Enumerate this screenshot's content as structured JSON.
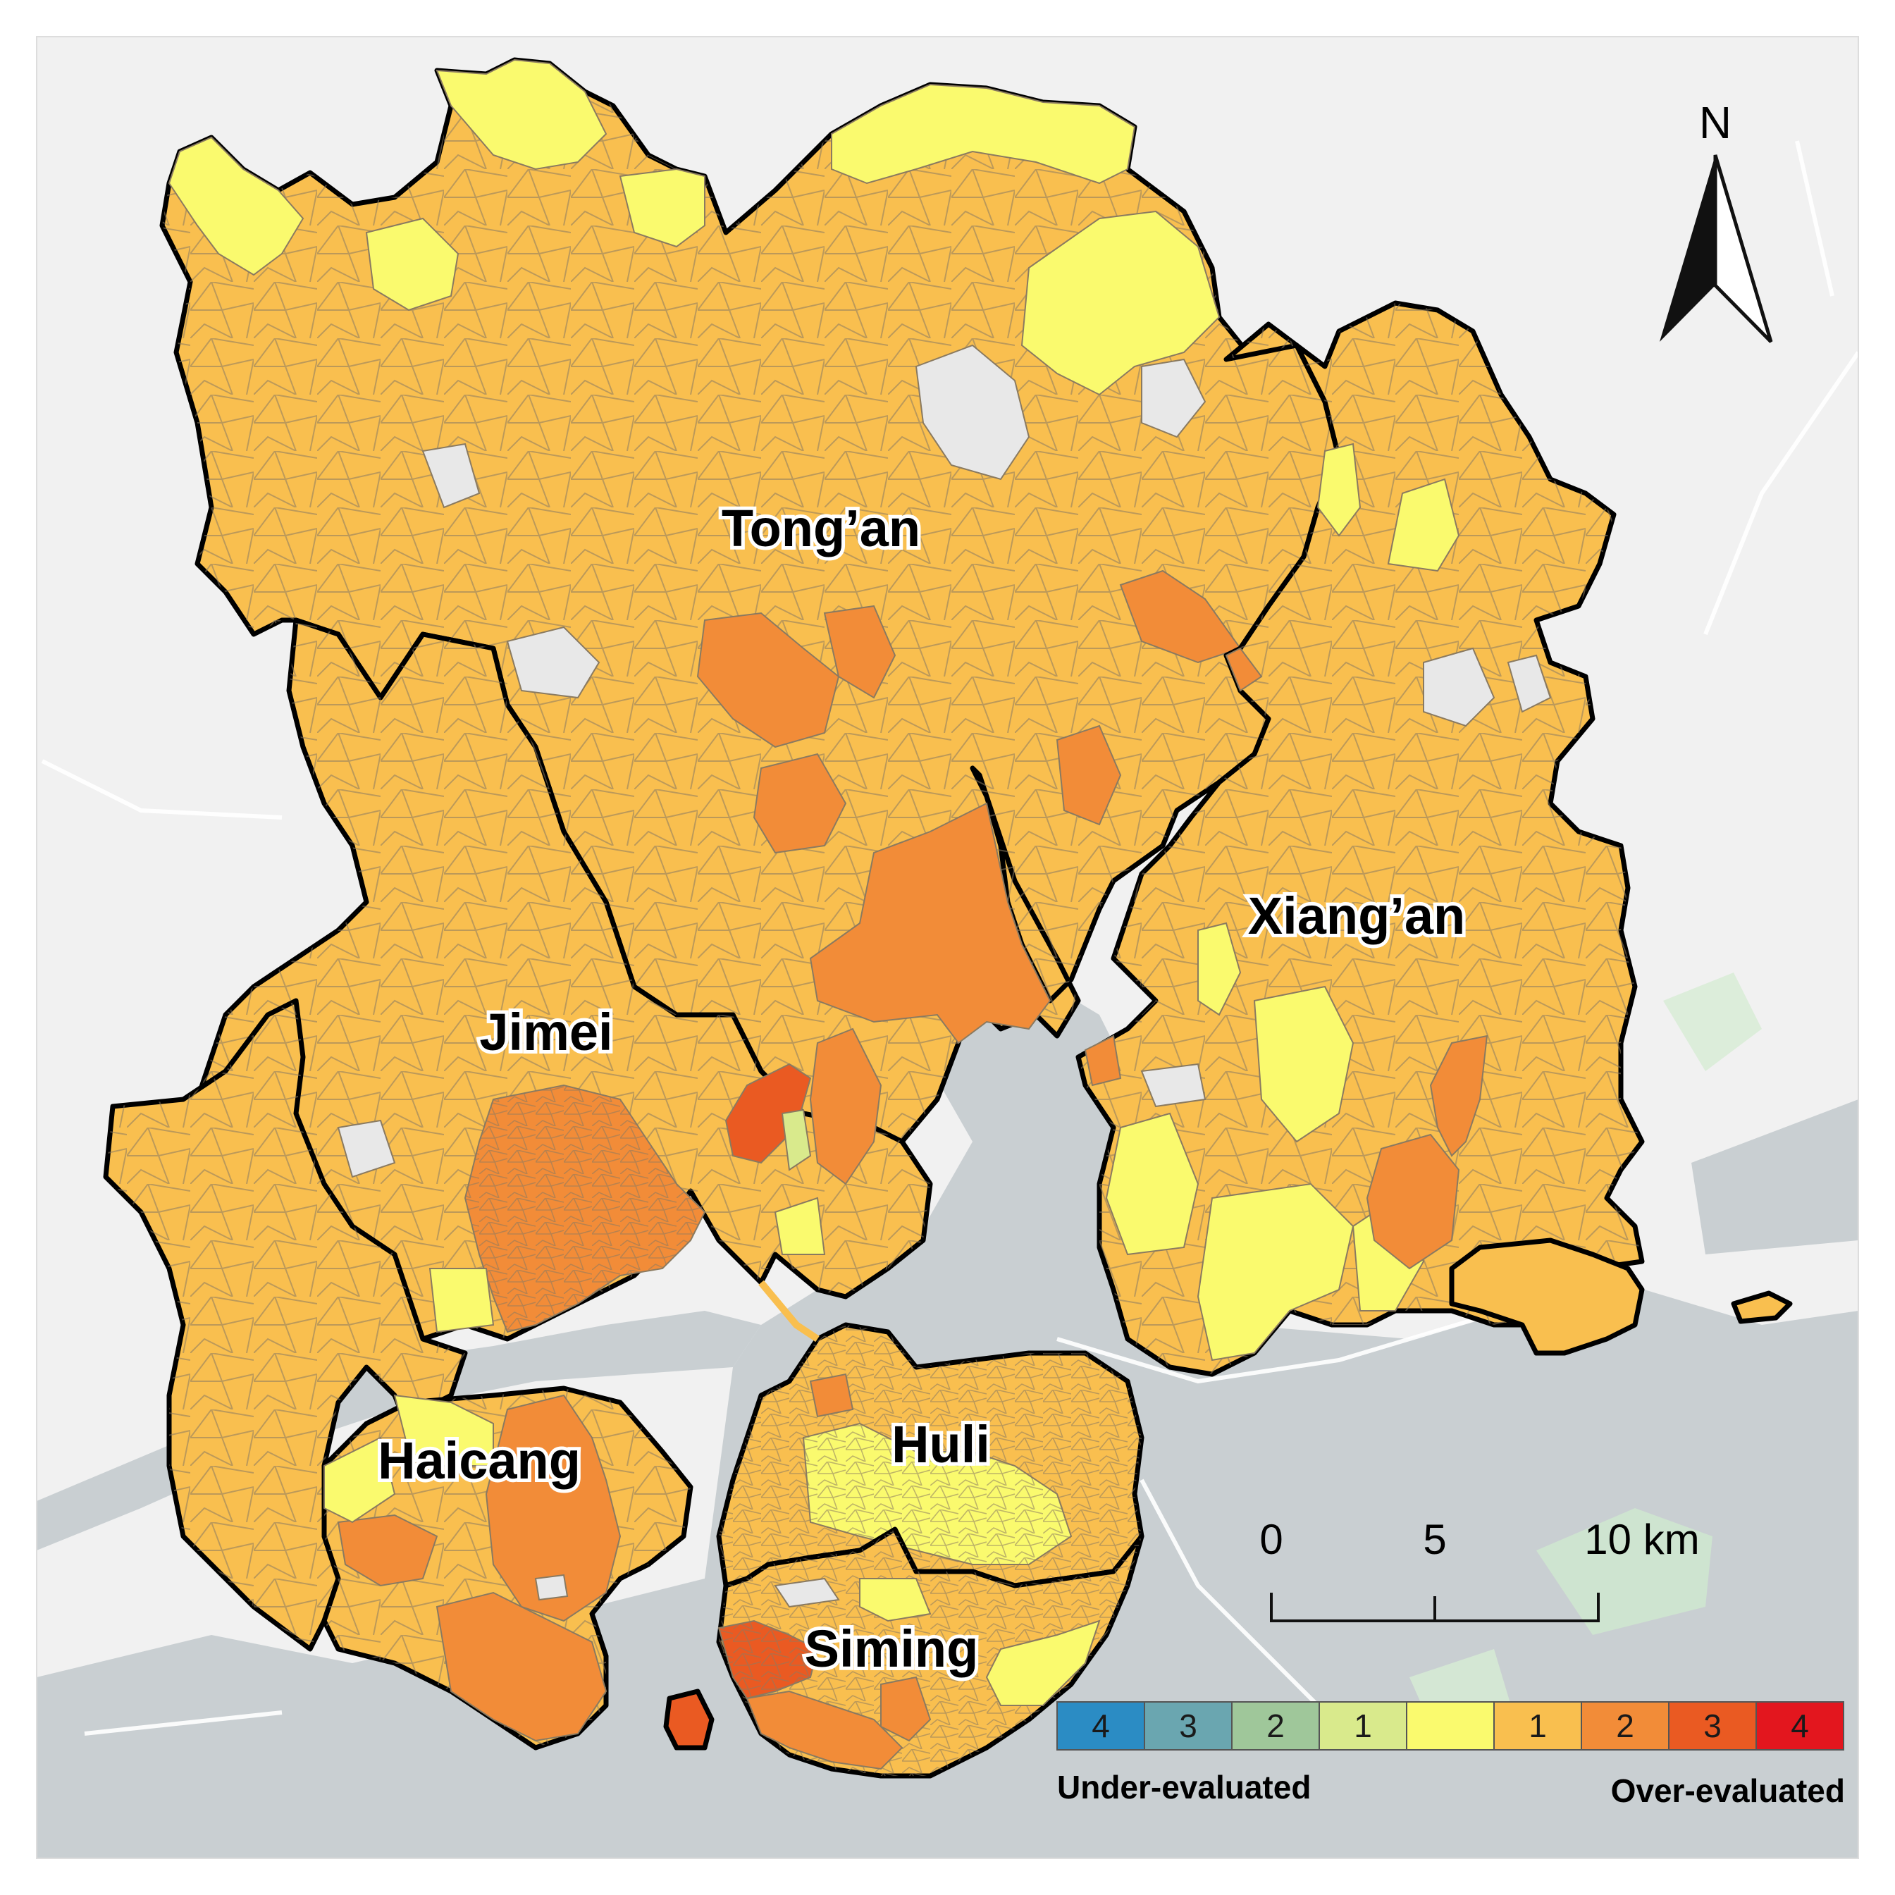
{
  "map": {
    "districts": [
      {
        "id": "tongan",
        "label": "Tong’an"
      },
      {
        "id": "xiangan",
        "label": "Xiang’an"
      },
      {
        "id": "jimei",
        "label": "Jimei"
      },
      {
        "id": "haicang",
        "label": "Haicang"
      },
      {
        "id": "huli",
        "label": "Huli"
      },
      {
        "id": "siming",
        "label": "Siming"
      }
    ],
    "north_arrow": {
      "label": "N"
    },
    "scale_bar": {
      "ticks": [
        "0",
        "5",
        "10 km"
      ]
    },
    "legend": {
      "classes": [
        {
          "label": "4",
          "color": "#2b8cc4"
        },
        {
          "label": "3",
          "color": "#6aa6b0"
        },
        {
          "label": "2",
          "color": "#9fc79a"
        },
        {
          "label": "1",
          "color": "#d9ea8c"
        },
        {
          "label": "",
          "color": "#fafa6e"
        },
        {
          "label": "1",
          "color": "#f9bf4f"
        },
        {
          "label": "2",
          "color": "#f28c38"
        },
        {
          "label": "3",
          "color": "#ea5a22"
        },
        {
          "label": "4",
          "color": "#e3161e"
        }
      ],
      "under_label": "Under-evaluated",
      "over_label": "Over-evaluated"
    },
    "colors": {
      "land_background": "#f1f1f1",
      "water": "#c9cfd2",
      "boundary": "#000000",
      "level_0": "#fafa6e",
      "over_1": "#f9bf4f",
      "over_2": "#f28c38",
      "over_3": "#ea5a22",
      "over_4": "#e3161e"
    }
  }
}
